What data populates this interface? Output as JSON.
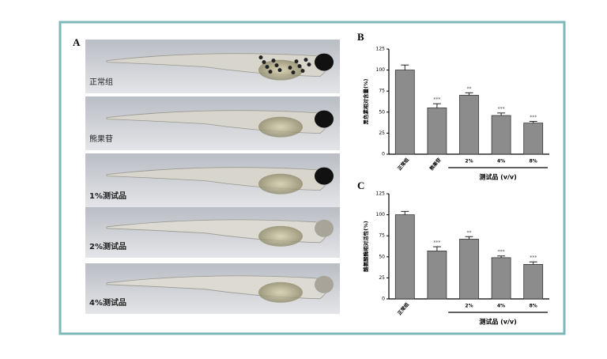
{
  "panel_a": {
    "panel": "A",
    "labels": [
      "正常组",
      "熊果苷",
      "1%测试品",
      "2%测试品",
      "4%测试品"
    ]
  },
  "chart_data": [
    {
      "type": "bar",
      "panel": "B",
      "y_label": "黑色素相对含量(%)",
      "categories": [
        "正常组",
        "熊果苷",
        "2%",
        "4%",
        "8%"
      ],
      "values": [
        100,
        55,
        70,
        46,
        37
      ],
      "errors": [
        6,
        5,
        3,
        3,
        2
      ],
      "annotations": [
        null,
        "***",
        "**",
        "***",
        "***"
      ],
      "group_label": "测试品 (v/v)",
      "color": "#8c8c8c",
      "ylim": [
        0,
        125
      ],
      "yticks": [
        0,
        25,
        50,
        75,
        100,
        125
      ]
    },
    {
      "type": "bar",
      "panel": "C",
      "y_label": "酪氨酸酶相对活性(%)",
      "categories": [
        "正常组",
        null,
        "2%",
        "4%",
        "8%"
      ],
      "values": [
        100,
        57,
        71,
        49,
        41
      ],
      "errors": [
        4,
        5,
        3,
        2,
        3
      ],
      "annotations": [
        null,
        "***",
        "**",
        "***",
        "***"
      ],
      "group_label": "测试品 (v/v)",
      "color": "#8c8c8c",
      "ylim": [
        0,
        125
      ],
      "yticks": [
        0,
        25,
        50,
        75,
        100,
        125
      ]
    }
  ]
}
